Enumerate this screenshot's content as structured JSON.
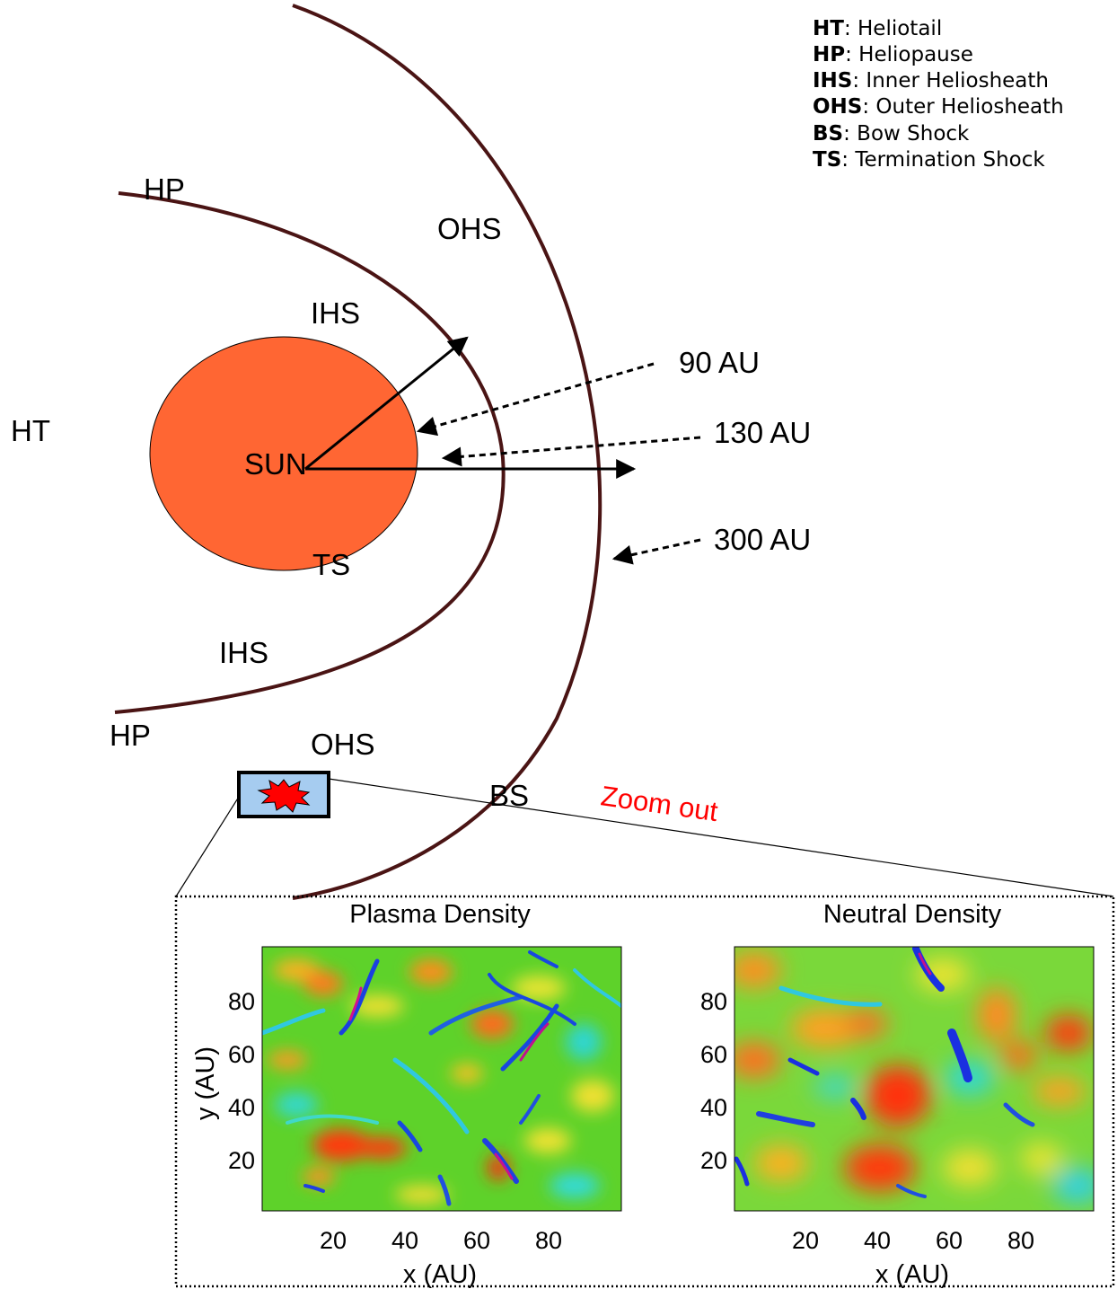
{
  "legend": [
    {
      "key": "HT",
      "desc": ": Heliotail"
    },
    {
      "key": "HP",
      "desc": ": Heliopause"
    },
    {
      "key": "IHS",
      "desc": ": Inner Heliosheath"
    },
    {
      "key": "OHS",
      "desc": ": Outer Heliosheath"
    },
    {
      "key": "BS",
      "desc": ": Bow Shock"
    },
    {
      "key": "TS",
      "desc": ": Termination Shock"
    }
  ],
  "labels": {
    "hp_top": "HP",
    "hp_bottom": "HP",
    "ohs_top": "OHS",
    "ohs_bottom": "OHS",
    "ihs_top": "IHS",
    "ihs_bottom": "IHS",
    "ht": "HT",
    "sun": "SUN",
    "ts": "TS",
    "bs": "BS",
    "zoom": "Zoom out"
  },
  "distances": [
    "90 AU",
    "130 AU",
    "300 AU"
  ],
  "colors": {
    "sun_fill": "#ff6633",
    "boundary": "#4a1414",
    "zoom_text": "#ff0000",
    "box_fill": "#a6ccf0",
    "burst_fill": "#ff0000"
  },
  "panels": [
    {
      "title": "Plasma Density",
      "xlabel": "x (AU)",
      "ylabel": "y (AU)",
      "xticks": [
        "20",
        "40",
        "60",
        "80"
      ],
      "yticks": [
        "80",
        "60",
        "40",
        "20"
      ]
    },
    {
      "title": "Neutral Density",
      "xlabel": "x (AU)",
      "ylabel": "",
      "xticks": [
        "20",
        "40",
        "60",
        "80"
      ],
      "yticks": [
        "80",
        "60",
        "40",
        "20"
      ]
    }
  ]
}
